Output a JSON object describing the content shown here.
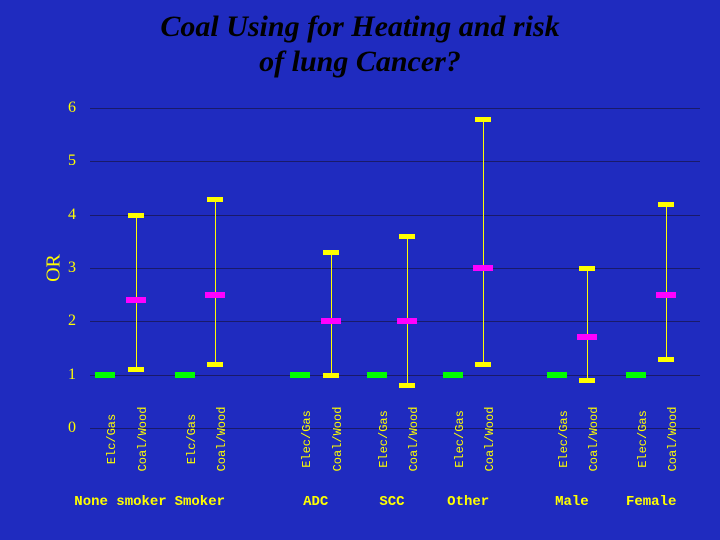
{
  "title_lines": [
    "Coal Using for Heating and risk",
    "of lung Cancer?"
  ],
  "title_fontsize": 30,
  "title_color": "#000000",
  "background_color": "#1f2bbf",
  "plot_bg_color": "#1f2bbf",
  "text_color": "#ffff00",
  "y_axis": {
    "label": "OR",
    "label_fontsize": 20,
    "min": 0,
    "max": 6,
    "tick_step": 1,
    "ticks": [
      0,
      1,
      2,
      3,
      4,
      5,
      6
    ],
    "tick_fontsize": 16,
    "grid_color": "#1a1a6a"
  },
  "sub_labels": {
    "electric": "Elc/Gas",
    "electric_alt": "Elec/Gas",
    "coal": "Coal/Wood",
    "fontsize": 12
  },
  "series_style": {
    "error_bar_color": "#ffff00",
    "cap_width": 16,
    "point_bar_width": 20
  },
  "group_label_fontsize": 14,
  "groups": [
    {
      "label": "None smoker",
      "sublabel_a": "Elc/Gas",
      "items": [
        {
          "point": 1.0,
          "low": 1.0,
          "high": 1.0,
          "color": "#00ff00"
        },
        {
          "point": 2.4,
          "low": 1.1,
          "high": 4.0,
          "color": "#ff00ff"
        }
      ]
    },
    {
      "label": "Smoker",
      "sublabel_a": "Elc/Gas",
      "items": [
        {
          "point": 1.0,
          "low": 1.0,
          "high": 1.0,
          "color": "#00ff00"
        },
        {
          "point": 2.5,
          "low": 1.2,
          "high": 4.3,
          "color": "#ff00ff"
        }
      ]
    },
    {
      "label": "ADC",
      "sublabel_a": "Elec/Gas",
      "items": [
        {
          "point": 1.0,
          "low": 1.0,
          "high": 1.0,
          "color": "#00ff00"
        },
        {
          "point": 2.0,
          "low": 1.0,
          "high": 3.3,
          "color": "#ff00ff"
        }
      ]
    },
    {
      "label": "SCC",
      "sublabel_a": "Elec/Gas",
      "items": [
        {
          "point": 1.0,
          "low": 1.0,
          "high": 1.0,
          "color": "#00ff00"
        },
        {
          "point": 2.0,
          "low": 0.8,
          "high": 3.6,
          "color": "#ff00ff"
        }
      ]
    },
    {
      "label": "Other",
      "sublabel_a": "Elec/Gas",
      "items": [
        {
          "point": 1.0,
          "low": 1.0,
          "high": 1.0,
          "color": "#00ff00"
        },
        {
          "point": 3.0,
          "low": 1.2,
          "high": 5.8,
          "color": "#ff00ff"
        }
      ]
    },
    {
      "label": "Male",
      "sublabel_a": "Elec/Gas",
      "items": [
        {
          "point": 1.0,
          "low": 1.0,
          "high": 1.0,
          "color": "#00ff00"
        },
        {
          "point": 1.7,
          "low": 0.9,
          "high": 3.0,
          "color": "#ff00ff"
        }
      ]
    },
    {
      "label": "Female",
      "sublabel_a": "Elec/Gas",
      "items": [
        {
          "point": 1.0,
          "low": 1.0,
          "high": 1.0,
          "color": "#00ff00"
        },
        {
          "point": 2.5,
          "low": 1.3,
          "high": 4.2,
          "color": "#ff00ff"
        }
      ]
    }
  ],
  "layout": {
    "group_positions_pct": [
      5,
      18,
      37,
      49.5,
      62,
      79,
      92
    ],
    "pair_offset_pct": 2.5
  }
}
